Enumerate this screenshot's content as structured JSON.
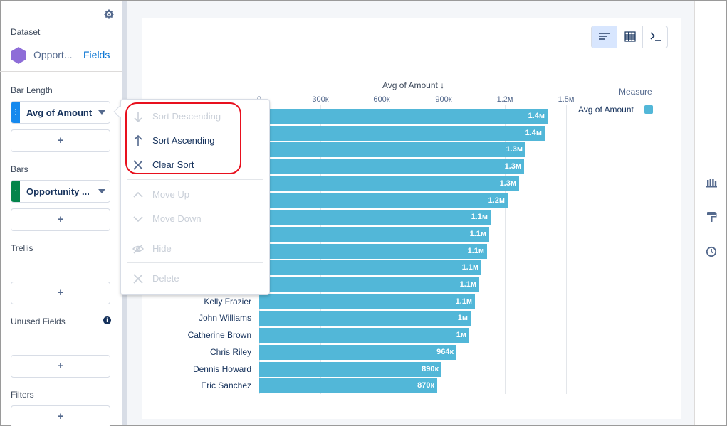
{
  "left_panel": {
    "dataset_label": "Dataset",
    "dataset_name": "Opport...",
    "fields_link": "Fields",
    "bar_length_label": "Bar Length",
    "bar_length_field": "Avg of Amount",
    "bars_label": "Bars",
    "bars_field": "Opportunity ...",
    "trellis_label": "Trellis",
    "unused_label": "Unused Fields",
    "filters_label": "Filters",
    "add": "+",
    "colors": {
      "measure": "#1589ee",
      "dimension": "#04844b",
      "dataset_icon": "#8e6dd8"
    }
  },
  "menu": {
    "items": [
      {
        "label": "Sort Descending",
        "icon": "arrow-down-icon",
        "enabled": false
      },
      {
        "label": "Sort Ascending",
        "icon": "arrow-up-icon",
        "enabled": true
      },
      {
        "label": "Clear Sort",
        "icon": "close-icon",
        "enabled": true
      },
      {
        "label": "Move Up",
        "icon": "chevron-up-icon",
        "enabled": false
      },
      {
        "label": "Move Down",
        "icon": "chevron-down-icon",
        "enabled": false
      },
      {
        "label": "Hide",
        "icon": "eye-slash-icon",
        "enabled": false
      },
      {
        "label": "Delete",
        "icon": "close-icon",
        "enabled": false
      }
    ]
  },
  "chart_data": {
    "type": "bar",
    "orientation": "horizontal",
    "axis_title": "Avg of Amount ↓",
    "tick_labels": [
      "0",
      "300к",
      "600к",
      "900к",
      "1.2м",
      "1.5м"
    ],
    "ticks": [
      0,
      300000,
      600000,
      900000,
      1200000,
      1500000
    ],
    "xlim": [
      0,
      1500000
    ],
    "grid": true,
    "legend_title": "Measure",
    "legend_placement": "top-right",
    "series": [
      {
        "name": "Avg of Amount",
        "color": "#52b7d8"
      }
    ],
    "categories": [
      "",
      "",
      "",
      "",
      "",
      "",
      "",
      "",
      "",
      "",
      "",
      "Kelly Frazier",
      "John Williams",
      "Catherine Brown",
      "Chris Riley",
      "Dennis Howard",
      "Eric Sanchez"
    ],
    "values": [
      1410000,
      1395000,
      1300000,
      1295000,
      1270000,
      1215000,
      1130000,
      1125000,
      1115000,
      1085000,
      1075000,
      1055000,
      1035000,
      1025000,
      964000,
      890000,
      870000
    ],
    "value_labels": [
      "1.4м",
      "1.4м",
      "1.3м",
      "1.3м",
      "1.3м",
      "1.2м",
      "1.1м",
      "1.1м",
      "1.1м",
      "1.1м",
      "1.1м",
      "1.1м",
      "1м",
      "1м",
      "964к",
      "890к",
      "870к"
    ]
  }
}
